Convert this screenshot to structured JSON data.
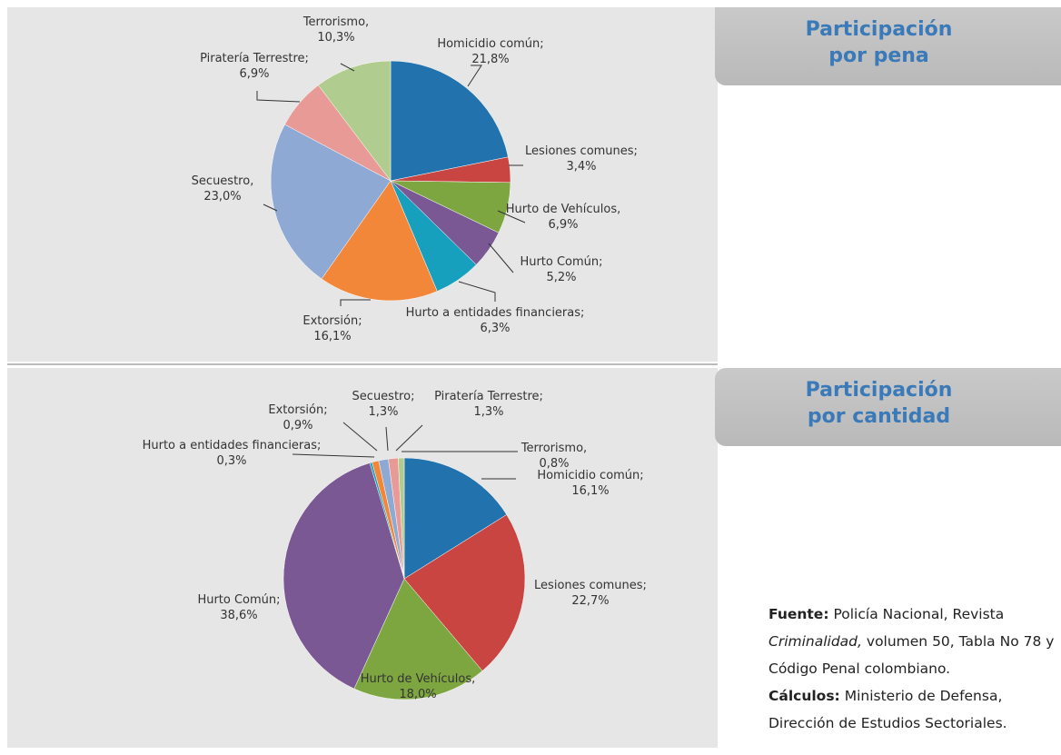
{
  "chart_data": [
    {
      "type": "pie",
      "categories": [
        "Homicidio común;",
        "Lesiones comunes;",
        "Hurto de Vehículos,",
        "Hurto Común;",
        "Hurto a entidades financieras;",
        "Extorsión;",
        "Secuestro,",
        "Piratería Terrestre;",
        "Terrorismo,"
      ],
      "values": [
        21.8,
        3.4,
        6.9,
        5.2,
        6.3,
        16.1,
        23.0,
        6.9,
        10.3
      ],
      "value_labels": [
        "21,8%",
        "3,4%",
        "6,9%",
        "5,2%",
        "6,3%",
        "16,1%",
        "23,0%",
        "6,9%",
        "10,3%"
      ],
      "colors": [
        "#2272ad",
        "#c84541",
        "#7ea640",
        "#7a5893",
        "#16a0bd",
        "#f2873a",
        "#8eaad4",
        "#e89a96",
        "#b0cc8e"
      ]
    },
    {
      "type": "pie",
      "categories": [
        "Homicidio común;",
        "Lesiones comunes;",
        "Hurto de Vehículos,",
        "Hurto Común;",
        "Hurto a entidades financieras;",
        "Extorsión;",
        "Secuestro;",
        "Piratería Terrestre;",
        "Terrorismo,"
      ],
      "values": [
        16.1,
        22.7,
        18.0,
        38.6,
        0.3,
        0.9,
        1.3,
        1.3,
        0.8
      ],
      "value_labels": [
        "16,1%",
        "22,7%",
        "18,0%",
        "38,6%",
        "0,3%",
        "0,9%",
        "1,3%",
        "1,3%",
        "0,8%"
      ],
      "colors": [
        "#2272ad",
        "#c84541",
        "#7ea640",
        "#7a5893",
        "#16a0bd",
        "#f2873a",
        "#8eaad4",
        "#e89a96",
        "#b0cc8e"
      ]
    }
  ],
  "tabs": [
    {
      "line1": "Participación",
      "line2": "por pena"
    },
    {
      "line1": "Participación",
      "line2": "por cantidad"
    }
  ],
  "fuente": {
    "label": "Fuente:",
    "text1": "Policía Nacional, Revista",
    "italic": "Criminalidad,",
    "text2": "volumen 50, Tabla No 78 y Código Penal colombiano."
  },
  "calculos": {
    "label": "Cálculos:",
    "text": "Ministerio de Defensa, Dirección de Estudios Sectoriales."
  }
}
